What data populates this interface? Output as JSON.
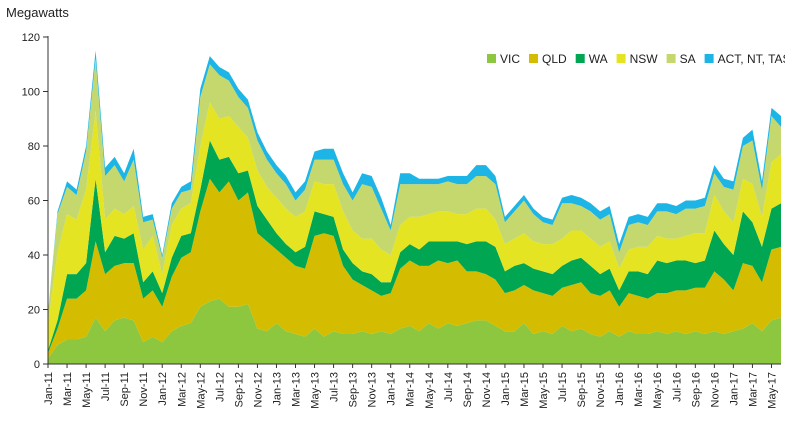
{
  "chart_data": {
    "type": "area",
    "stacked": true,
    "title": "",
    "xlabel": "",
    "ylabel": "Megawatts",
    "ylim": [
      0,
      120
    ],
    "yticks": [
      0,
      20,
      40,
      60,
      80,
      100,
      120
    ],
    "grid": false,
    "legend_position": "top-right",
    "x": [
      "Jan-11",
      "Feb-11",
      "Mar-11",
      "Apr-11",
      "May-11",
      "Jun-11",
      "Jul-11",
      "Aug-11",
      "Sep-11",
      "Oct-11",
      "Nov-11",
      "Dec-11",
      "Jan-12",
      "Feb-12",
      "Mar-12",
      "Apr-12",
      "May-12",
      "Jun-12",
      "Jul-12",
      "Aug-12",
      "Sep-12",
      "Oct-12",
      "Nov-12",
      "Dec-12",
      "Jan-13",
      "Feb-13",
      "Mar-13",
      "Apr-13",
      "May-13",
      "Jun-13",
      "Jul-13",
      "Aug-13",
      "Sep-13",
      "Oct-13",
      "Nov-13",
      "Dec-13",
      "Jan-14",
      "Feb-14",
      "Mar-14",
      "Apr-14",
      "May-14",
      "Jun-14",
      "Jul-14",
      "Aug-14",
      "Sep-14",
      "Oct-14",
      "Nov-14",
      "Dec-14",
      "Jan-15",
      "Feb-15",
      "Mar-15",
      "Apr-15",
      "May-15",
      "Jun-15",
      "Jul-15",
      "Aug-15",
      "Sep-15",
      "Oct-15",
      "Nov-15",
      "Dec-15",
      "Jan-16",
      "Feb-16",
      "Mar-16",
      "Apr-16",
      "May-16",
      "Jun-16",
      "Jul-16",
      "Aug-16",
      "Sep-16",
      "Oct-16",
      "Nov-16",
      "Dec-16",
      "Jan-17",
      "Feb-17",
      "Mar-17",
      "Apr-17",
      "May-17",
      "Jun-17"
    ],
    "x_tick_labels": [
      "Jan-11",
      "Mar-11",
      "May-11",
      "Jul-11",
      "Sep-11",
      "Nov-11",
      "Jan-12",
      "Mar-12",
      "May-12",
      "Jul-12",
      "Sep-12",
      "Nov-12",
      "Jan-13",
      "Mar-13",
      "May-13",
      "Jul-13",
      "Sep-13",
      "Nov-13",
      "Jan-14",
      "Mar-14",
      "May-14",
      "Jul-14",
      "Sep-14",
      "Nov-14",
      "Jan-15",
      "Mar-15",
      "May-15",
      "Jul-15",
      "Sep-15",
      "Nov-15",
      "Jan-16",
      "Mar-16",
      "May-16",
      "Jul-16",
      "Sep-16",
      "Nov-16",
      "Jan-17",
      "Mar-17",
      "May-17"
    ],
    "series": [
      {
        "name": "VIC",
        "color": "#8dc63f",
        "values": [
          2,
          7,
          9,
          9,
          10,
          17,
          12,
          16,
          17,
          16,
          8,
          10,
          8,
          12,
          14,
          15,
          21,
          23,
          24,
          21,
          21,
          22,
          13,
          12,
          15,
          12,
          11,
          10,
          13,
          10,
          12,
          11,
          11,
          12,
          11,
          12,
          11,
          13,
          14,
          12,
          15,
          13,
          15,
          14,
          15,
          16,
          16,
          14,
          12,
          12,
          15,
          11,
          12,
          11,
          14,
          12,
          13,
          11,
          10,
          12,
          10,
          12,
          11,
          11,
          12,
          11,
          12,
          11,
          12,
          11,
          12,
          11,
          12,
          13,
          15,
          12,
          16,
          17
        ]
      },
      {
        "name": "QLD",
        "color": "#d4bd00",
        "values": [
          2,
          6,
          15,
          15,
          17,
          28,
          21,
          20,
          20,
          21,
          16,
          17,
          13,
          20,
          25,
          26,
          35,
          45,
          39,
          46,
          39,
          41,
          35,
          33,
          27,
          27,
          25,
          25,
          34,
          38,
          35,
          25,
          20,
          17,
          16,
          13,
          15,
          22,
          24,
          24,
          21,
          25,
          22,
          24,
          19,
          18,
          17,
          17,
          14,
          15,
          14,
          16,
          14,
          14,
          14,
          17,
          17,
          15,
          15,
          15,
          11,
          14,
          14,
          13,
          14,
          15,
          15,
          16,
          16,
          17,
          22,
          20,
          15,
          24,
          21,
          18,
          26,
          26
        ]
      },
      {
        "name": "WA",
        "color": "#00a651",
        "values": [
          1,
          3,
          9,
          9,
          10,
          23,
          8,
          11,
          9,
          11,
          6,
          7,
          5,
          7,
          8,
          7,
          8,
          14,
          12,
          9,
          10,
          8,
          10,
          8,
          6,
          5,
          5,
          8,
          9,
          7,
          7,
          6,
          6,
          5,
          6,
          5,
          4,
          6,
          6,
          6,
          9,
          7,
          8,
          7,
          10,
          11,
          12,
          12,
          8,
          9,
          8,
          8,
          8,
          8,
          8,
          9,
          9,
          10,
          8,
          8,
          6,
          8,
          9,
          9,
          12,
          11,
          11,
          11,
          9,
          10,
          15,
          13,
          13,
          19,
          16,
          13,
          15,
          16
        ]
      },
      {
        "name": "NSW",
        "color": "#e4e423",
        "values": [
          10,
          25,
          22,
          20,
          27,
          25,
          12,
          10,
          9,
          10,
          12,
          13,
          7,
          12,
          10,
          11,
          16,
          14,
          15,
          15,
          17,
          12,
          13,
          12,
          13,
          13,
          13,
          13,
          11,
          11,
          12,
          14,
          12,
          12,
          13,
          12,
          10,
          10,
          10,
          12,
          10,
          11,
          11,
          10,
          11,
          12,
          12,
          10,
          10,
          10,
          11,
          10,
          10,
          11,
          10,
          11,
          10,
          10,
          10,
          10,
          8,
          8,
          9,
          10,
          9,
          9,
          8,
          9,
          11,
          10,
          13,
          12,
          12,
          12,
          14,
          11,
          17,
          18
        ]
      },
      {
        "name": "SA",
        "color": "#c5d86d",
        "values": [
          4,
          14,
          10,
          9,
          14,
          19,
          16,
          16,
          12,
          17,
          10,
          6,
          6,
          6,
          6,
          5,
          18,
          14,
          16,
          13,
          11,
          11,
          11,
          10,
          9,
          9,
          6,
          8,
          8,
          9,
          9,
          10,
          11,
          20,
          19,
          15,
          9,
          15,
          12,
          12,
          11,
          10,
          11,
          11,
          11,
          12,
          12,
          13,
          8,
          10,
          12,
          10,
          8,
          7,
          13,
          10,
          9,
          10,
          10,
          10,
          6,
          9,
          9,
          8,
          9,
          10,
          9,
          10,
          9,
          10,
          8,
          9,
          12,
          12,
          16,
          10,
          17,
          10
        ]
      },
      {
        "name": "ACT, NT, TAS",
        "color": "#1cb5e6",
        "values": [
          0,
          1,
          2,
          2,
          2,
          3,
          3,
          3,
          3,
          4,
          2,
          2,
          1,
          2,
          2,
          3,
          3,
          3,
          3,
          3,
          3,
          3,
          3,
          3,
          3,
          3,
          3,
          3,
          3,
          4,
          4,
          4,
          3,
          4,
          4,
          4,
          2,
          4,
          4,
          2,
          2,
          2,
          2,
          3,
          3,
          4,
          4,
          3,
          2,
          2,
          2,
          2,
          2,
          2,
          2,
          3,
          3,
          3,
          3,
          3,
          3,
          3,
          3,
          3,
          3,
          3,
          3,
          3,
          3,
          3,
          3,
          3,
          3,
          3,
          4,
          3,
          3,
          4
        ]
      }
    ]
  }
}
